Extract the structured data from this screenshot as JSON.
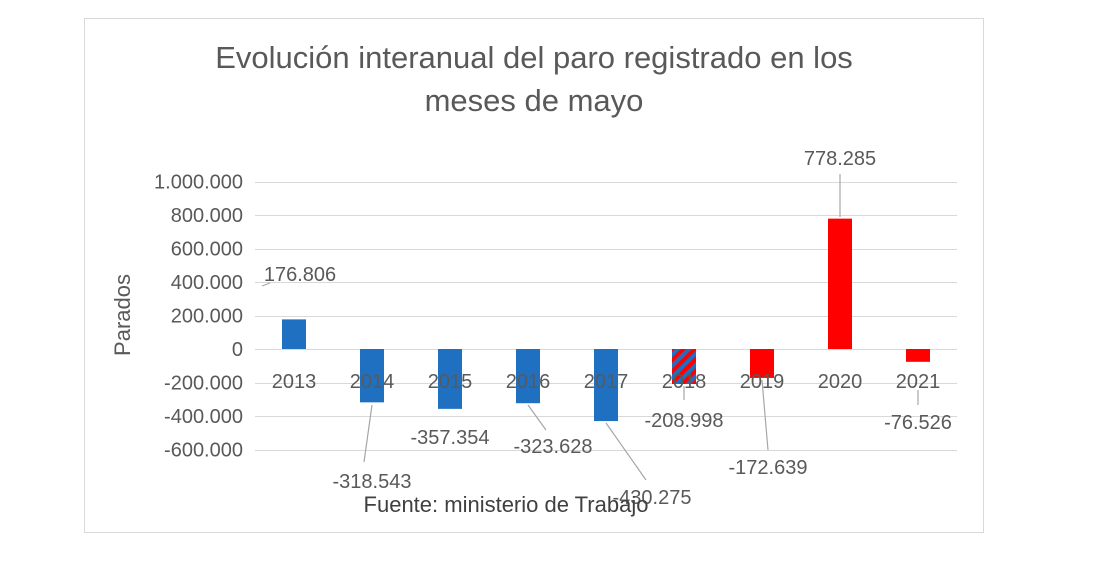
{
  "chart_data": {
    "type": "bar",
    "title": "Evolución interanual del paro registrado en los meses de mayo",
    "xlabel": "",
    "ylabel": "Parados",
    "categories": [
      "2013",
      "2014",
      "2015",
      "2016",
      "2017",
      "2018",
      "2019",
      "2020",
      "2021"
    ],
    "values": [
      176806,
      -318543,
      -357354,
      -323628,
      -430275,
      -208998,
      -172639,
      778285,
      -76526
    ],
    "data_labels": [
      "176.806",
      "-318.543",
      "-357.354",
      "-323.628",
      "-430.275",
      "-208.998",
      "-172.639",
      "778.285",
      "-76.526"
    ],
    "ylim": [
      -600000,
      1000000
    ],
    "y_ticks": [
      1000000,
      800000,
      600000,
      400000,
      200000,
      0,
      -200000,
      -400000,
      -600000
    ],
    "y_tick_labels": [
      "1.000.000",
      "800.000",
      "600.000",
      "400.000",
      "200.000",
      "0",
      "-200.000",
      "-400.000",
      "-600.000"
    ],
    "bar_fills": [
      {
        "color": "#1F70C1"
      },
      {
        "color": "#1F70C1"
      },
      {
        "color": "#1F70C1"
      },
      {
        "color": "#1F70C1"
      },
      {
        "color": "#1F70C1"
      },
      {
        "color": "#1F70C1",
        "stripe": "#FF0000"
      },
      {
        "color": "#FF0000"
      },
      {
        "color": "#FF0000"
      },
      {
        "color": "#FF0000"
      }
    ],
    "grid": true,
    "source_note": "Fuente: ministerio de Trabajo"
  },
  "colors": {
    "blue": "#1F70C1",
    "red": "#FF0000",
    "text": "#595959",
    "grid": "#D9D9D9",
    "leader": "#A6A6A6",
    "frame": "#D9D9D9"
  }
}
